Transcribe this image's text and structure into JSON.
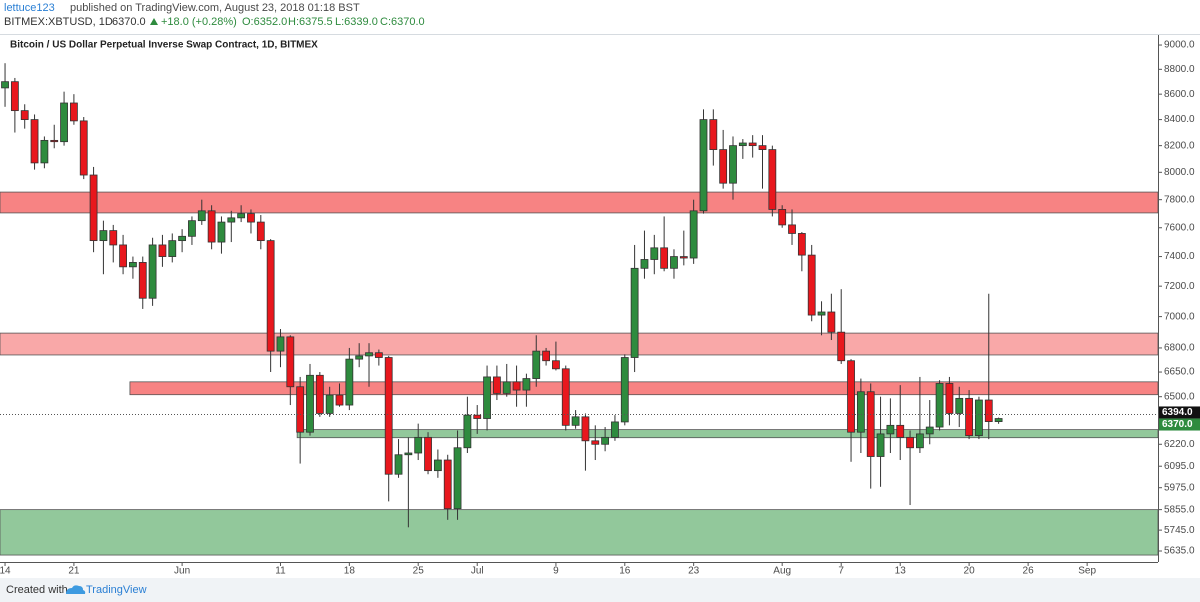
{
  "header": {
    "author": "lettuce123",
    "published": "published on TradingView.com, August 23, 2018 01:18 BST",
    "symbol": "BITMEX:XBTUSD, 1D",
    "last": "6370.0",
    "change": "+18.0 (+0.28%)",
    "open": "O:6352.0",
    "high": "H:6375.5",
    "low": "L:6339.0",
    "close": "C:6370.0"
  },
  "footer": {
    "created": "Created with",
    "brand": "TradingView"
  },
  "chart_data": {
    "type": "candlestick",
    "title": "Bitcoin / US Dollar Perpetual Inverse Swap Contract, 1D, BITMEX",
    "log_scale": true,
    "up_color": "#2e8b3e",
    "down_color": "#e8171d",
    "ylim": [
      5578,
      9084
    ],
    "yticks": [
      {
        "value": 9000,
        "label": "9000.0"
      },
      {
        "value": 8800,
        "label": "8800.0"
      },
      {
        "value": 8600,
        "label": "8600.0"
      },
      {
        "value": 8400,
        "label": "8400.0"
      },
      {
        "value": 8200,
        "label": "8200.0"
      },
      {
        "value": 8000,
        "label": "8000.0"
      },
      {
        "value": 7800,
        "label": "7800.0"
      },
      {
        "value": 7600,
        "label": "7600.0"
      },
      {
        "value": 7400,
        "label": "7400.0"
      },
      {
        "value": 7200,
        "label": "7200.0"
      },
      {
        "value": 7000,
        "label": "7000.0"
      },
      {
        "value": 6800,
        "label": "6800.0"
      },
      {
        "value": 6650,
        "label": "6650.0"
      },
      {
        "value": 6500,
        "label": "6500.0"
      },
      {
        "value": 6220,
        "label": "6220.0"
      },
      {
        "value": 6095,
        "label": "6095.0"
      },
      {
        "value": 5975,
        "label": "5975.0"
      },
      {
        "value": 5855,
        "label": "5855.0"
      },
      {
        "value": 5745,
        "label": "5745.0"
      },
      {
        "value": 5635,
        "label": "5635.0"
      }
    ],
    "xlim": [
      "2018-05-13",
      "2018-09-08"
    ],
    "xticks": [
      {
        "value": "2018-05-14",
        "label": "14"
      },
      {
        "value": "2018-05-21",
        "label": "21"
      },
      {
        "value": "2018-06-01",
        "label": "Jun"
      },
      {
        "value": "2018-06-11",
        "label": "11"
      },
      {
        "value": "2018-06-18",
        "label": "18"
      },
      {
        "value": "2018-06-25",
        "label": "25"
      },
      {
        "value": "2018-07-01",
        "label": "Jul"
      },
      {
        "value": "2018-07-09",
        "label": "9"
      },
      {
        "value": "2018-07-16",
        "label": "16"
      },
      {
        "value": "2018-07-23",
        "label": "23"
      },
      {
        "value": "2018-08-01",
        "label": "Aug"
      },
      {
        "value": "2018-08-07",
        "label": "7"
      },
      {
        "value": "2018-08-13",
        "label": "13"
      },
      {
        "value": "2018-08-20",
        "label": "20"
      },
      {
        "value": "2018-08-26",
        "label": "26"
      },
      {
        "value": "2018-09-01",
        "label": "Sep"
      }
    ],
    "price_labels": [
      {
        "value": 6394,
        "label": "6394.0",
        "color": "#111111",
        "dotted": true
      },
      {
        "value": 6370,
        "label": "6370.0",
        "color": "#2e8b3e",
        "dotted": false
      }
    ],
    "zones": [
      {
        "from": 7705,
        "to": 7855,
        "color": "#f77c7c"
      },
      {
        "from": 6756,
        "to": 6894,
        "color": "#f9a3a3"
      },
      {
        "from": 6512,
        "to": 6590,
        "color": "#f77c7c",
        "start": "2018-05-27"
      },
      {
        "from": 6258,
        "to": 6305,
        "color": "#8cc596",
        "start": "2018-06-13"
      },
      {
        "from": 5614,
        "to": 5855,
        "color": "#8cc596"
      }
    ],
    "x": [
      "2018-05-14",
      "2018-05-15",
      "2018-05-16",
      "2018-05-17",
      "2018-05-18",
      "2018-05-19",
      "2018-05-20",
      "2018-05-21",
      "2018-05-22",
      "2018-05-23",
      "2018-05-24",
      "2018-05-25",
      "2018-05-26",
      "2018-05-27",
      "2018-05-28",
      "2018-05-29",
      "2018-05-30",
      "2018-05-31",
      "2018-06-01",
      "2018-06-02",
      "2018-06-03",
      "2018-06-04",
      "2018-06-05",
      "2018-06-06",
      "2018-06-07",
      "2018-06-08",
      "2018-06-09",
      "2018-06-10",
      "2018-06-11",
      "2018-06-12",
      "2018-06-13",
      "2018-06-14",
      "2018-06-15",
      "2018-06-16",
      "2018-06-17",
      "2018-06-18",
      "2018-06-19",
      "2018-06-20",
      "2018-06-21",
      "2018-06-22",
      "2018-06-23",
      "2018-06-24",
      "2018-06-25",
      "2018-06-26",
      "2018-06-27",
      "2018-06-28",
      "2018-06-29",
      "2018-06-30",
      "2018-07-01",
      "2018-07-02",
      "2018-07-03",
      "2018-07-04",
      "2018-07-05",
      "2018-07-06",
      "2018-07-07",
      "2018-07-08",
      "2018-07-09",
      "2018-07-10",
      "2018-07-11",
      "2018-07-12",
      "2018-07-13",
      "2018-07-14",
      "2018-07-15",
      "2018-07-16",
      "2018-07-17",
      "2018-07-18",
      "2018-07-19",
      "2018-07-20",
      "2018-07-21",
      "2018-07-22",
      "2018-07-23",
      "2018-07-24",
      "2018-07-25",
      "2018-07-26",
      "2018-07-27",
      "2018-07-28",
      "2018-07-29",
      "2018-07-30",
      "2018-07-31",
      "2018-08-01",
      "2018-08-02",
      "2018-08-03",
      "2018-08-04",
      "2018-08-05",
      "2018-08-06",
      "2018-08-07",
      "2018-08-08",
      "2018-08-09",
      "2018-08-10",
      "2018-08-11",
      "2018-08-12",
      "2018-08-13",
      "2018-08-14",
      "2018-08-15",
      "2018-08-16",
      "2018-08-17",
      "2018-08-18",
      "2018-08-19",
      "2018-08-20",
      "2018-08-21",
      "2018-08-22",
      "2018-08-23"
    ],
    "open": [
      8650,
      8700,
      8470,
      8400,
      8070,
      8240,
      8230,
      8530,
      8390,
      7980,
      7510,
      7580,
      7480,
      7330,
      7360,
      7120,
      7480,
      7400,
      7510,
      7540,
      7650,
      7720,
      7500,
      7640,
      7670,
      7700,
      7640,
      7510,
      6780,
      6870,
      6560,
      6290,
      6630,
      6400,
      6510,
      6450,
      6730,
      6750,
      6770,
      6740,
      6050,
      6160,
      6170,
      6260,
      6070,
      6130,
      5860,
      6200,
      6390,
      6370,
      6620,
      6520,
      6590,
      6540,
      6610,
      6780,
      6720,
      6670,
      6330,
      6380,
      6240,
      6220,
      6260,
      6350,
      6740,
      7320,
      7380,
      7460,
      7320,
      7400,
      7390,
      7720,
      8400,
      8170,
      7920,
      8200,
      8220,
      8200,
      8170,
      7730,
      7620,
      7560,
      7410,
      7010,
      7030,
      6900,
      6720,
      6290,
      6530,
      6150,
      6280,
      6330,
      6260,
      6200,
      6280,
      6320,
      6580,
      6400,
      6490,
      6270,
      6480,
      6352
    ],
    "high": [
      8850,
      8730,
      8520,
      8440,
      8270,
      8360,
      8620,
      8600,
      8420,
      8040,
      7650,
      7620,
      7550,
      7400,
      7400,
      7530,
      7550,
      7560,
      7590,
      7680,
      7800,
      7760,
      7680,
      7720,
      7760,
      7730,
      7690,
      7520,
      6920,
      6880,
      6620,
      6700,
      6650,
      6560,
      6580,
      6800,
      6830,
      6830,
      6790,
      6750,
      6250,
      6260,
      6340,
      6290,
      6190,
      6160,
      6300,
      6500,
      6450,
      6690,
      6690,
      6700,
      6690,
      6640,
      6880,
      6800,
      6840,
      6690,
      6420,
      6400,
      6330,
      6320,
      6390,
      6760,
      7480,
      7580,
      7550,
      7680,
      7450,
      7580,
      7800,
      8480,
      8480,
      8320,
      8270,
      8250,
      8280,
      8280,
      8200,
      7760,
      7730,
      7570,
      7480,
      7100,
      7150,
      7180,
      6730,
      6610,
      6580,
      6500,
      6490,
      6570,
      6300,
      6620,
      6480,
      6600,
      6620,
      6560,
      6540,
      6500,
      7150,
      6375.5
    ],
    "low": [
      8500,
      8300,
      8330,
      8020,
      8030,
      8180,
      8200,
      8360,
      7950,
      7430,
      7280,
      7360,
      7280,
      7250,
      7050,
      7070,
      7330,
      7360,
      7430,
      7480,
      7620,
      7450,
      7420,
      7500,
      7640,
      7560,
      7450,
      6650,
      6680,
      6450,
      6110,
      6270,
      6380,
      6380,
      6440,
      6420,
      6680,
      6560,
      6690,
      5900,
      6030,
      5760,
      6130,
      6050,
      6030,
      5800,
      5800,
      6170,
      6280,
      6300,
      6480,
      6500,
      6440,
      6440,
      6560,
      6690,
      6660,
      6300,
      6310,
      6070,
      6130,
      6180,
      6240,
      6330,
      6650,
      7250,
      7280,
      7300,
      7250,
      7340,
      7350,
      7700,
      8050,
      7880,
      7800,
      8100,
      8110,
      7880,
      7680,
      7600,
      7480,
      7300,
      6970,
      6880,
      6850,
      6700,
      6120,
      6170,
      5970,
      5980,
      6170,
      6130,
      5880,
      6170,
      6220,
      6300,
      6330,
      6320,
      6250,
      6250,
      6250,
      6339
    ],
    "close": [
      8700,
      8470,
      8400,
      8070,
      8240,
      8230,
      8530,
      8390,
      7980,
      7510,
      7580,
      7480,
      7330,
      7360,
      7120,
      7480,
      7400,
      7510,
      7540,
      7650,
      7720,
      7500,
      7640,
      7670,
      7700,
      7640,
      7510,
      6780,
      6870,
      6560,
      6290,
      6630,
      6400,
      6510,
      6450,
      6730,
      6750,
      6770,
      6740,
      6050,
      6160,
      6170,
      6260,
      6070,
      6130,
      5860,
      6200,
      6390,
      6370,
      6620,
      6520,
      6590,
      6540,
      6610,
      6780,
      6720,
      6670,
      6330,
      6380,
      6240,
      6220,
      6260,
      6350,
      6740,
      7320,
      7380,
      7460,
      7320,
      7400,
      7390,
      7720,
      8400,
      8170,
      7920,
      8200,
      8220,
      8200,
      8170,
      7730,
      7620,
      7560,
      7410,
      7010,
      7030,
      6900,
      6720,
      6290,
      6530,
      6150,
      6280,
      6330,
      6260,
      6200,
      6280,
      6320,
      6580,
      6400,
      6490,
      6270,
      6480,
      6352,
      6370
    ]
  }
}
